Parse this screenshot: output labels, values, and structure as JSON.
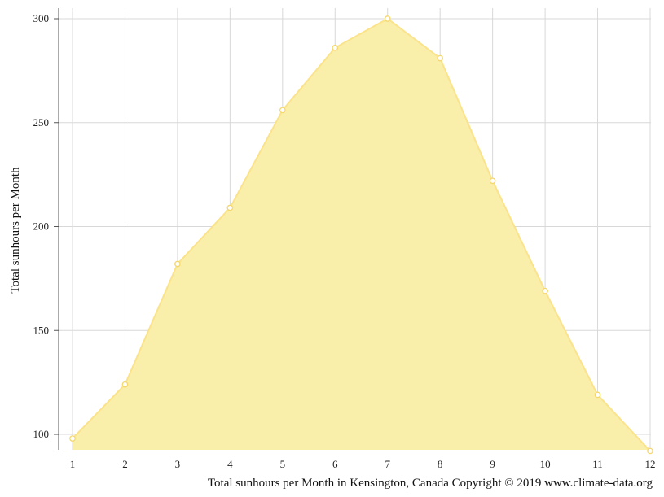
{
  "chart_data": {
    "type": "area",
    "x": [
      1,
      2,
      3,
      4,
      5,
      6,
      7,
      8,
      9,
      10,
      11,
      12
    ],
    "series": [
      {
        "values": [
          98,
          124,
          182,
          209,
          256,
          286,
          300,
          281,
          222,
          169,
          119,
          92
        ]
      }
    ],
    "ylabel": "Total sunhours per Month",
    "xlabel": "",
    "caption": "Total sunhours per Month in Kensington, Canada Copyright © 2019 www.climate-data.org",
    "xlim": [
      1,
      12
    ],
    "ylim": [
      92,
      300
    ],
    "yticks": [
      100,
      150,
      200,
      250,
      300
    ],
    "grid": true,
    "colors": {
      "fill": "#faeeab",
      "line": "#fae38a",
      "marker_stroke": "#f5d76e",
      "grid": "#d8d8d8",
      "axis": "#555555"
    }
  }
}
